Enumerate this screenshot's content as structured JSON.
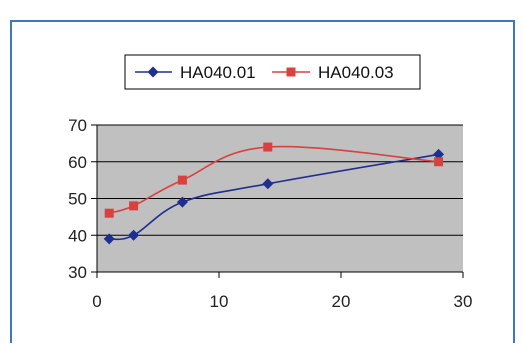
{
  "chart_data": {
    "type": "line",
    "title": "",
    "xlabel": "",
    "ylabel": "",
    "xlim": [
      0,
      30
    ],
    "ylim": [
      30,
      70
    ],
    "xticks": [
      0,
      10,
      20,
      30
    ],
    "yticks": [
      30,
      40,
      50,
      60,
      70
    ],
    "grid": "horizontal",
    "legend_position": "top",
    "plot_background": "#c0c0c0",
    "series": [
      {
        "name": "HA040.01",
        "color": "#1f2f8f",
        "marker": "diamond",
        "x": [
          1,
          3,
          7,
          14,
          28
        ],
        "y": [
          39,
          40,
          49,
          54,
          62
        ]
      },
      {
        "name": "HA040.03",
        "color": "#d94040",
        "marker": "square",
        "x": [
          1,
          3,
          7,
          14,
          28
        ],
        "y": [
          46,
          48,
          55,
          64,
          60
        ]
      }
    ]
  }
}
